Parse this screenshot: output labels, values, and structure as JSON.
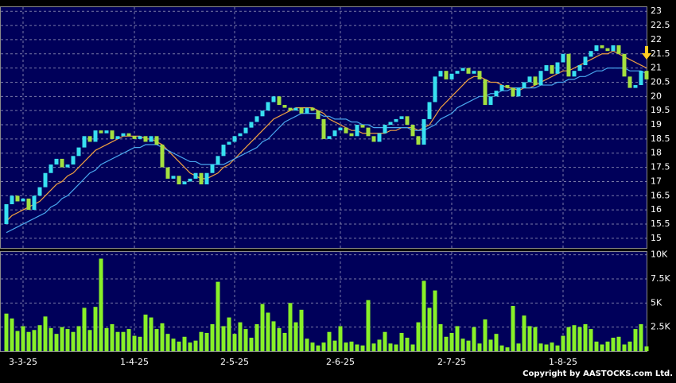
{
  "chart_data": [
    {
      "type": "candlestick",
      "categories": [
        null,
        null,
        null,
        "3-3-25",
        null,
        null,
        null,
        null,
        null,
        null,
        null,
        null,
        null,
        null,
        null,
        null,
        null,
        null,
        null,
        null,
        null,
        null,
        null,
        "1-4-25",
        null,
        null,
        null,
        null,
        null,
        null,
        null,
        null,
        null,
        null,
        null,
        null,
        null,
        null,
        null,
        null,
        null,
        "2-5-25",
        null,
        null,
        null,
        null,
        null,
        null,
        null,
        null,
        null,
        null,
        null,
        null,
        null,
        null,
        null,
        null,
        null,
        null,
        "2-6-25",
        null,
        null,
        null,
        null,
        null,
        null,
        null,
        null,
        null,
        null,
        null,
        null,
        null,
        null,
        null,
        null,
        null,
        null,
        null,
        "2-7-25",
        null,
        null,
        null,
        null,
        null,
        null,
        null,
        null,
        null,
        null,
        null,
        null,
        null,
        null,
        null,
        null,
        null,
        null,
        null,
        "1-8-25",
        null,
        null,
        null,
        null,
        null,
        null,
        null,
        null,
        null,
        null,
        null,
        null,
        null,
        null,
        null
      ],
      "open": [
        15.5,
        16.2,
        16.5,
        16.3,
        16.4,
        16.0,
        16.5,
        16.8,
        17.3,
        17.6,
        17.8,
        17.5,
        17.6,
        17.9,
        18.2,
        18.6,
        18.4,
        18.8,
        18.7,
        18.8,
        18.5,
        18.6,
        18.7,
        18.6,
        18.5,
        18.6,
        18.4,
        18.6,
        18.3,
        17.5,
        17.1,
        17.2,
        16.9,
        17.0,
        17.1,
        17.3,
        16.9,
        17.3,
        17.6,
        17.9,
        18.3,
        18.4,
        18.6,
        18.7,
        18.9,
        19.1,
        19.3,
        19.5,
        19.8,
        20.0,
        19.7,
        19.6,
        19.5,
        19.6,
        19.4,
        19.6,
        19.5,
        19.2,
        18.5,
        18.6,
        18.8,
        18.9,
        18.7,
        18.6,
        19.0,
        18.9,
        18.6,
        18.4,
        18.7,
        19.0,
        19.1,
        19.2,
        19.3,
        19.0,
        18.6,
        18.3,
        19.2,
        19.8,
        20.7,
        20.9,
        20.6,
        20.8,
        20.9,
        21.0,
        20.8,
        20.9,
        20.6,
        19.7,
        20.0,
        20.2,
        20.4,
        20.3,
        20.0,
        20.3,
        20.5,
        20.7,
        20.4,
        20.9,
        21.1,
        20.8,
        21.2,
        21.5,
        20.7,
        20.9,
        21.1,
        21.4,
        21.6,
        21.8,
        21.7,
        21.6,
        21.8,
        21.5,
        20.7,
        20.3,
        20.4,
        20.9
      ],
      "close": [
        16.2,
        16.5,
        16.3,
        16.4,
        16.0,
        16.5,
        16.8,
        17.3,
        17.6,
        17.8,
        17.5,
        17.6,
        17.9,
        18.2,
        18.6,
        18.4,
        18.8,
        18.7,
        18.8,
        18.5,
        18.6,
        18.7,
        18.6,
        18.5,
        18.6,
        18.4,
        18.6,
        18.3,
        17.5,
        17.1,
        17.2,
        16.9,
        17.0,
        17.1,
        17.3,
        16.9,
        17.3,
        17.6,
        17.9,
        18.3,
        18.4,
        18.6,
        18.7,
        18.9,
        19.1,
        19.3,
        19.5,
        19.8,
        20.0,
        19.7,
        19.6,
        19.5,
        19.6,
        19.4,
        19.6,
        19.5,
        19.2,
        18.5,
        18.6,
        18.8,
        18.9,
        18.7,
        18.6,
        19.0,
        18.9,
        18.6,
        18.4,
        18.7,
        19.0,
        19.1,
        19.2,
        19.3,
        19.0,
        18.6,
        18.3,
        19.2,
        19.8,
        20.7,
        20.9,
        20.6,
        20.8,
        20.9,
        21.0,
        20.8,
        20.9,
        20.6,
        19.7,
        20.0,
        20.2,
        20.4,
        20.3,
        20.0,
        20.3,
        20.5,
        20.7,
        20.4,
        20.9,
        21.1,
        20.8,
        21.2,
        21.5,
        20.7,
        20.9,
        21.1,
        21.4,
        21.6,
        21.8,
        21.7,
        21.6,
        21.8,
        21.5,
        20.7,
        20.3,
        20.4,
        20.9,
        20.6
      ],
      "up_color": "#38e0f0",
      "down_color": "#a4e040",
      "series": [
        {
          "color": "#f0a040",
          "values": [
            15.6,
            15.8,
            15.9,
            16.0,
            16.1,
            16.2,
            16.3,
            16.5,
            16.7,
            16.9,
            17.0,
            17.2,
            17.3,
            17.5,
            17.7,
            17.9,
            18.1,
            18.2,
            18.3,
            18.4,
            18.5,
            18.6,
            18.6,
            18.6,
            18.6,
            18.5,
            18.5,
            18.4,
            18.3,
            18.1,
            17.9,
            17.7,
            17.5,
            17.3,
            17.2,
            17.1,
            17.1,
            17.2,
            17.3,
            17.5,
            17.6,
            17.8,
            18.0,
            18.2,
            18.4,
            18.6,
            18.8,
            19.0,
            19.2,
            19.3,
            19.4,
            19.5,
            19.6,
            19.6,
            19.6,
            19.6,
            19.5,
            19.4,
            19.2,
            19.1,
            19.0,
            18.9,
            18.8,
            18.8,
            18.7,
            18.7,
            18.7,
            18.7,
            18.7,
            18.8,
            18.8,
            18.9,
            18.9,
            18.9,
            18.8,
            18.9,
            19.0,
            19.3,
            19.6,
            19.8,
            20.0,
            20.2,
            20.4,
            20.6,
            20.7,
            20.7,
            20.6,
            20.5,
            20.5,
            20.4,
            20.3,
            20.3,
            20.2,
            20.3,
            20.3,
            20.4,
            20.5,
            20.6,
            20.7,
            20.8,
            20.9,
            20.9,
            21.0,
            21.1,
            21.2,
            21.3,
            21.4,
            21.5,
            21.5,
            21.6,
            21.5,
            21.4,
            21.3,
            21.2,
            21.1,
            21.0
          ]
        },
        {
          "color": "#4aa8f0",
          "values": [
            15.2,
            15.3,
            15.4,
            15.5,
            15.6,
            15.7,
            15.8,
            15.9,
            16.1,
            16.2,
            16.4,
            16.5,
            16.7,
            16.9,
            17.1,
            17.3,
            17.4,
            17.6,
            17.7,
            17.8,
            17.9,
            18.0,
            18.1,
            18.2,
            18.2,
            18.3,
            18.3,
            18.3,
            18.2,
            18.1,
            18.0,
            17.9,
            17.8,
            17.7,
            17.7,
            17.6,
            17.6,
            17.6,
            17.6,
            17.6,
            17.7,
            17.8,
            17.9,
            18.0,
            18.1,
            18.2,
            18.4,
            18.5,
            18.7,
            18.9,
            19.1,
            19.2,
            19.3,
            19.4,
            19.4,
            19.4,
            19.4,
            19.3,
            19.3,
            19.2,
            19.2,
            19.2,
            19.1,
            19.1,
            19.0,
            19.0,
            18.9,
            18.9,
            18.9,
            18.9,
            18.9,
            18.9,
            18.9,
            18.8,
            18.8,
            18.8,
            18.9,
            19.0,
            19.2,
            19.3,
            19.4,
            19.6,
            19.7,
            19.8,
            19.9,
            20.0,
            20.0,
            20.1,
            20.1,
            20.2,
            20.2,
            20.3,
            20.3,
            20.3,
            20.3,
            20.3,
            20.4,
            20.4,
            20.4,
            20.5,
            20.5,
            20.6,
            20.6,
            20.7,
            20.7,
            20.8,
            20.9,
            20.9,
            21.0,
            21.0,
            21.0,
            21.0,
            20.9,
            20.9,
            20.9,
            20.8
          ]
        }
      ],
      "ylim": [
        14.66,
        23.23
      ],
      "yticks": [
        15,
        15.5,
        16,
        16.5,
        17,
        17.5,
        18,
        18.5,
        19,
        19.5,
        20,
        20.5,
        21,
        21.5,
        22,
        22.5,
        23
      ],
      "grid": true
    },
    {
      "type": "bar",
      "values": [
        3900,
        3400,
        2100,
        2600,
        2000,
        2200,
        2700,
        3600,
        2400,
        1800,
        2500,
        2300,
        2000,
        2600,
        4500,
        2200,
        4600,
        9600,
        2400,
        2800,
        2000,
        2000,
        2300,
        1600,
        1500,
        3800,
        3500,
        2300,
        2900,
        1800,
        1300,
        1000,
        1500,
        900,
        1100,
        2000,
        1900,
        2800,
        7200,
        2600,
        3500,
        1800,
        3000,
        2300,
        1400,
        2800,
        4900,
        4000,
        3100,
        2400,
        1900,
        5000,
        3000,
        4300,
        1300,
        900,
        600,
        900,
        2000,
        1100,
        2600,
        900,
        1000,
        700,
        600,
        5300,
        800,
        1200,
        2000,
        800,
        700,
        1900,
        1400,
        700,
        3000,
        7300,
        4500,
        6300,
        2800,
        1500,
        1900,
        2600,
        1300,
        1100,
        2500,
        800,
        3300,
        1200,
        1800,
        600,
        400,
        4700,
        800,
        3700,
        2600,
        2500,
        800,
        700,
        900,
        600,
        1600,
        2500,
        2700,
        2500,
        2800,
        2300,
        1000,
        700,
        1000,
        1400,
        1500,
        700,
        1000,
        2300,
        2800,
        500
      ],
      "color": "#88f028",
      "ylim": [
        0,
        10300
      ],
      "yticks": [
        {
          "value": 2500,
          "label": "2.5K"
        },
        {
          "value": 5000,
          "label": "5K"
        },
        {
          "value": 7500,
          "label": "7.5K"
        },
        {
          "value": 10000,
          "label": "10K"
        }
      ],
      "grid": true
    }
  ],
  "footer": "Copyright by AASTOCKS.com Ltd."
}
